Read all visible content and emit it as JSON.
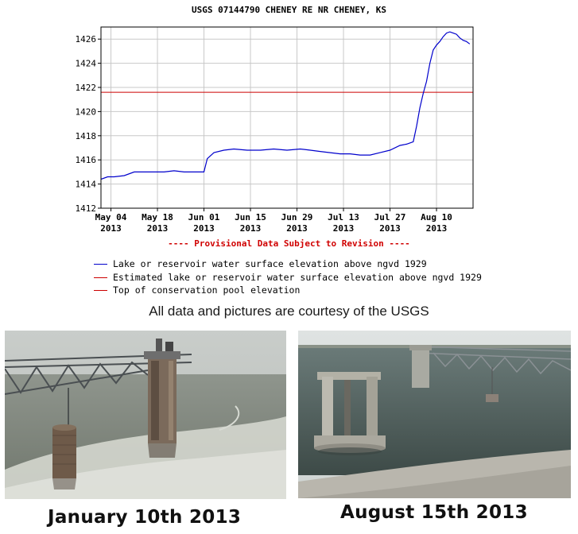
{
  "chart_data": {
    "type": "line",
    "title": "USGS 07144790 CHENEY RE NR CHENEY, KS",
    "xlabel": "",
    "ylabel": "",
    "ylim": [
      1412,
      1427
    ],
    "yticks": [
      1412,
      1414,
      1416,
      1418,
      1420,
      1422,
      1424,
      1426
    ],
    "xticks": [
      {
        "date": "2013-05-04",
        "label1": "May 04",
        "label2": "2013"
      },
      {
        "date": "2013-05-18",
        "label1": "May 18",
        "label2": "2013"
      },
      {
        "date": "2013-06-01",
        "label1": "Jun 01",
        "label2": "2013"
      },
      {
        "date": "2013-06-15",
        "label1": "Jun 15",
        "label2": "2013"
      },
      {
        "date": "2013-06-29",
        "label1": "Jun 29",
        "label2": "2013"
      },
      {
        "date": "2013-07-13",
        "label1": "Jul 13",
        "label2": "2013"
      },
      {
        "date": "2013-07-27",
        "label1": "Jul 27",
        "label2": "2013"
      },
      {
        "date": "2013-08-10",
        "label1": "Aug 10",
        "label2": "2013"
      }
    ],
    "xlim": [
      "2013-05-01",
      "2013-08-21"
    ],
    "grid": true,
    "series": [
      {
        "name": "Lake or reservoir water surface elevation above ngvd 1929",
        "color": "#0000cc",
        "x": [
          "2013-05-01",
          "2013-05-03",
          "2013-05-05",
          "2013-05-08",
          "2013-05-11",
          "2013-05-14",
          "2013-05-17",
          "2013-05-20",
          "2013-05-23",
          "2013-05-26",
          "2013-05-29",
          "2013-05-31",
          "2013-06-01",
          "2013-06-02",
          "2013-06-04",
          "2013-06-07",
          "2013-06-10",
          "2013-06-14",
          "2013-06-18",
          "2013-06-22",
          "2013-06-26",
          "2013-06-30",
          "2013-07-03",
          "2013-07-06",
          "2013-07-09",
          "2013-07-12",
          "2013-07-15",
          "2013-07-18",
          "2013-07-21",
          "2013-07-24",
          "2013-07-27",
          "2013-07-30",
          "2013-08-01",
          "2013-08-03",
          "2013-08-04",
          "2013-08-05",
          "2013-08-06",
          "2013-08-07",
          "2013-08-08",
          "2013-08-09",
          "2013-08-10",
          "2013-08-11",
          "2013-08-12",
          "2013-08-13",
          "2013-08-14",
          "2013-08-15",
          "2013-08-16",
          "2013-08-17",
          "2013-08-18",
          "2013-08-19",
          "2013-08-20"
        ],
        "values": [
          1414.4,
          1414.6,
          1414.6,
          1414.7,
          1415.0,
          1415.0,
          1415.0,
          1415.0,
          1415.1,
          1415.0,
          1415.0,
          1415.0,
          1415.0,
          1416.1,
          1416.6,
          1416.8,
          1416.9,
          1416.8,
          1416.8,
          1416.9,
          1416.8,
          1416.9,
          1416.8,
          1416.7,
          1416.6,
          1416.5,
          1416.5,
          1416.4,
          1416.4,
          1416.6,
          1416.8,
          1417.2,
          1417.3,
          1417.5,
          1418.8,
          1420.3,
          1421.5,
          1422.5,
          1424.0,
          1425.1,
          1425.5,
          1425.8,
          1426.2,
          1426.5,
          1426.6,
          1426.5,
          1426.4,
          1426.1,
          1425.9,
          1425.8,
          1425.6
        ]
      },
      {
        "name": "Estimated lake or reservoir water surface elevation above ngvd 1929",
        "color": "#cc0000"
      },
      {
        "name": "Top of conservation pool elevation",
        "color": "#cc0000",
        "constant": 1421.6
      }
    ]
  },
  "chart_notes": {
    "provisional": "---- Provisional Data Subject to Revision ----"
  },
  "credit": "All data and pictures are courtesy of the USGS",
  "photos": [
    {
      "caption": "January 10th 2013"
    },
    {
      "caption": "August 15th 2013"
    }
  ]
}
